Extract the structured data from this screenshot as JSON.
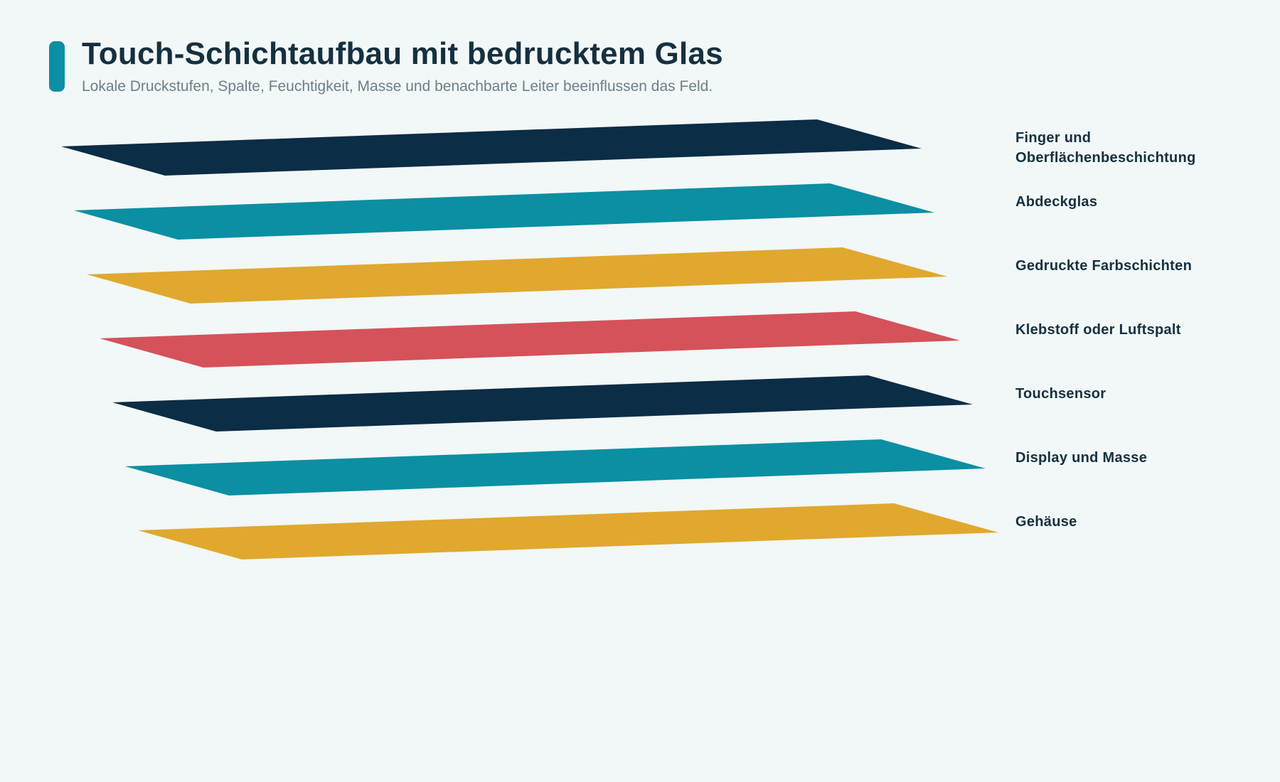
{
  "header": {
    "title": "Touch-Schichtaufbau mit bedrucktem Glas",
    "subtitle": "Lokale Druckstufen, Spalte, Feuchtigkeit, Masse und benachbarte Leiter beeinflussen das Feld."
  },
  "colors": {
    "background": "#f2f7f7",
    "accent": "#0b8fa3",
    "text": "#15303f",
    "muted": "#6c7f88"
  },
  "layers": [
    {
      "label": "Finger und Oberflächenbeschichtung",
      "color": "#0b2d45"
    },
    {
      "label": "Abdeckglas",
      "color": "#0b8fa3"
    },
    {
      "label": "Gedruckte Farbschichten",
      "color": "#e0a82e"
    },
    {
      "label": "Klebstoff oder Luftspalt",
      "color": "#d5525a"
    },
    {
      "label": "Touchsensor",
      "color": "#0b2d45"
    },
    {
      "label": "Display und Masse",
      "color": "#0b8fa3"
    },
    {
      "label": "Gehäuse",
      "color": "#e0a82e"
    }
  ]
}
